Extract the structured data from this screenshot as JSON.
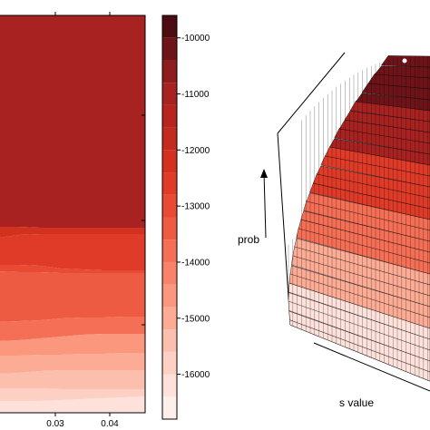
{
  "chart_data": [
    {
      "type": "heatmap",
      "x_tick_labels": [
        "0.03",
        "0.04"
      ],
      "x_ticks": [
        0.03,
        0.04
      ],
      "xlim": [
        0.0195,
        0.0465
      ],
      "colorbar": {
        "tick_labels": [
          "-10000",
          "-11000",
          "-12000",
          "-13000",
          "-14000",
          "-15000",
          "-16000"
        ],
        "tick_values": [
          -10000,
          -11000,
          -12000,
          -13000,
          -14000,
          -15000,
          -16000
        ],
        "range": [
          -16800,
          -9600
        ],
        "levels": [
          {
            "from": -16800,
            "to": -16400,
            "color": "#fdefec"
          },
          {
            "from": -16400,
            "to": -16000,
            "color": "#fde1da"
          },
          {
            "from": -16000,
            "to": -15600,
            "color": "#fcd1c4"
          },
          {
            "from": -15600,
            "to": -15200,
            "color": "#fcbfad"
          },
          {
            "from": -15200,
            "to": -14800,
            "color": "#fcab94"
          },
          {
            "from": -14800,
            "to": -14400,
            "color": "#fb977c"
          },
          {
            "from": -14400,
            "to": -14000,
            "color": "#f9836a"
          },
          {
            "from": -14000,
            "to": -13600,
            "color": "#f46f55"
          },
          {
            "from": -13600,
            "to": -13200,
            "color": "#ee5b43"
          },
          {
            "from": -13200,
            "to": -12800,
            "color": "#e84a33"
          },
          {
            "from": -12800,
            "to": -12400,
            "color": "#df3b28"
          },
          {
            "from": -12400,
            "to": -12000,
            "color": "#d3311f"
          },
          {
            "from": -12000,
            "to": -11600,
            "color": "#c42b1f"
          },
          {
            "from": -11600,
            "to": -11200,
            "color": "#b6261f"
          },
          {
            "from": -11200,
            "to": -10800,
            "color": "#a72220"
          },
          {
            "from": -10800,
            "to": -10400,
            "color": "#8e1d1e"
          },
          {
            "from": -10400,
            "to": -10000,
            "color": "#6e1419"
          },
          {
            "from": -10000,
            "to": -9600,
            "color": "#4d0b12"
          }
        ]
      },
      "bands": [
        {
          "level": -11000,
          "color": "#a72220"
        },
        {
          "level": -12000,
          "color": "#d3311f"
        },
        {
          "level": -12600,
          "color": "#df3b28"
        },
        {
          "level": -13000,
          "color": "#e84a33"
        },
        {
          "level": -13500,
          "color": "#ee5b43"
        },
        {
          "level": -14000,
          "color": "#f46f55"
        },
        {
          "level": -14600,
          "color": "#fb977c"
        },
        {
          "level": -15000,
          "color": "#fcab94"
        },
        {
          "level": -15400,
          "color": "#fcbfad"
        },
        {
          "level": -16000,
          "color": "#fcd1c4"
        },
        {
          "level": -16400,
          "color": "#fde1da"
        }
      ]
    },
    {
      "type": "surface3d",
      "xlabel": "s value",
      "zlabel": "prob",
      "colors": [
        "#fde1da",
        "#fcab94",
        "#f46f55",
        "#df3b28",
        "#a72220",
        "#6e1419"
      ]
    }
  ]
}
